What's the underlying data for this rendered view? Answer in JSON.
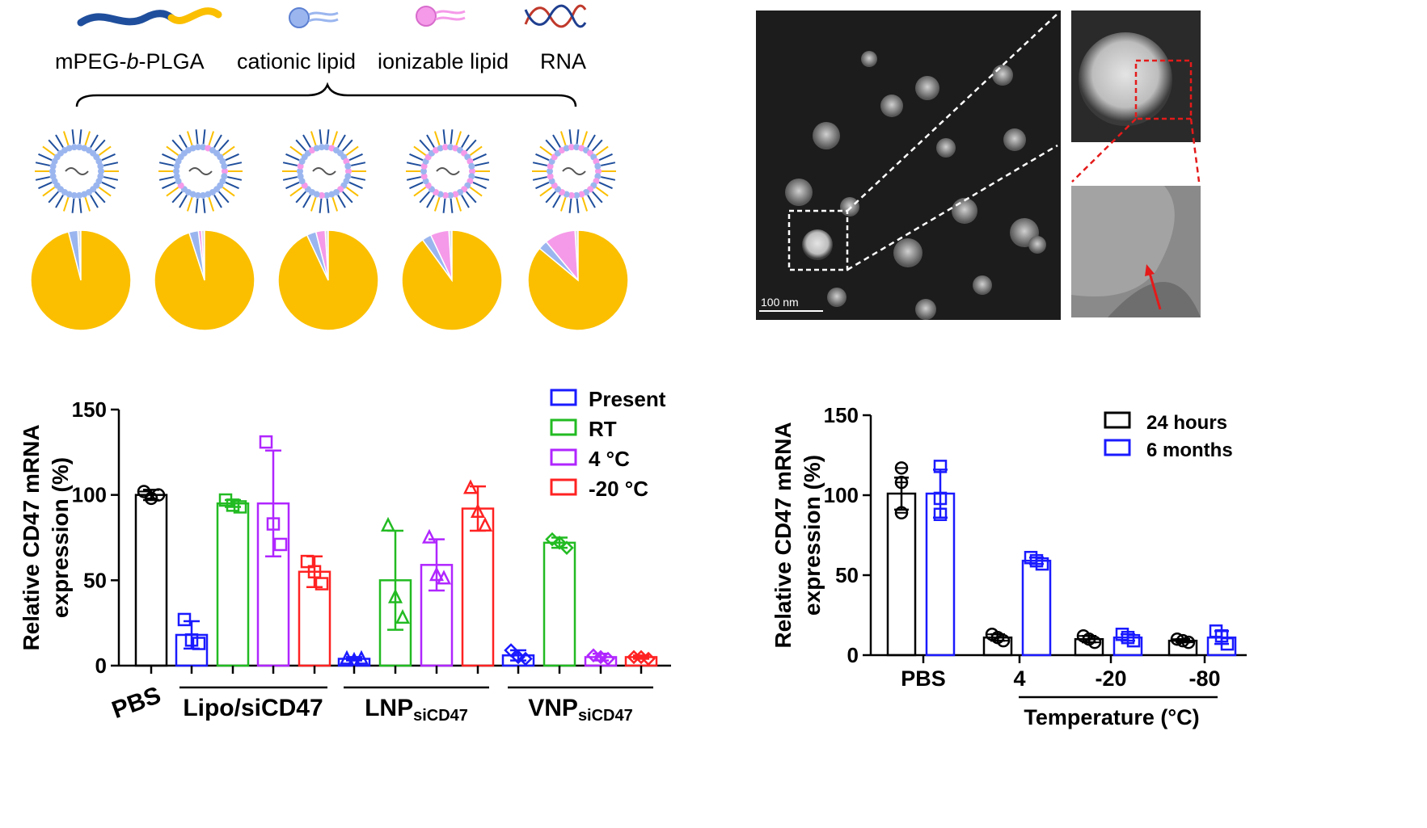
{
  "components": {
    "labels": [
      "mPEG-",
      "b",
      "-PLGA",
      "cationic lipid",
      "ionizable lipid",
      "RNA"
    ],
    "colors": {
      "polymer_peg": "#1f4e9c",
      "polymer_plga": "#fbbf00",
      "cationic": "#9bb6ef",
      "ionizable": "#f59ae9",
      "rna_red": "#c0392b",
      "rna_blue": "#1f3f8f"
    }
  },
  "pies": [
    {
      "slices": [
        {
          "name": "mPEG-b-PLGA",
          "value": 96,
          "color": "#fbbf00"
        },
        {
          "name": "cationic lipid",
          "value": 3,
          "color": "#9bb6ef"
        },
        {
          "name": "ionizable lipid",
          "value": 0,
          "color": "#f59ae9"
        },
        {
          "name": "RNA",
          "value": 1,
          "color": "#e0e0e0"
        }
      ]
    },
    {
      "slices": [
        {
          "name": "mPEG-b-PLGA",
          "value": 95,
          "color": "#fbbf00"
        },
        {
          "name": "cationic lipid",
          "value": 3,
          "color": "#9bb6ef"
        },
        {
          "name": "ionizable lipid",
          "value": 1,
          "color": "#f59ae9"
        },
        {
          "name": "RNA",
          "value": 1,
          "color": "#e0e0e0"
        }
      ]
    },
    {
      "slices": [
        {
          "name": "mPEG-b-PLGA",
          "value": 93,
          "color": "#fbbf00"
        },
        {
          "name": "cationic lipid",
          "value": 3,
          "color": "#9bb6ef"
        },
        {
          "name": "ionizable lipid",
          "value": 3,
          "color": "#f59ae9"
        },
        {
          "name": "RNA",
          "value": 1,
          "color": "#e0e0e0"
        }
      ]
    },
    {
      "slices": [
        {
          "name": "mPEG-b-PLGA",
          "value": 90,
          "color": "#fbbf00"
        },
        {
          "name": "cationic lipid",
          "value": 3,
          "color": "#9bb6ef"
        },
        {
          "name": "ionizable lipid",
          "value": 6,
          "color": "#f59ae9"
        },
        {
          "name": "RNA",
          "value": 1,
          "color": "#e0e0e0"
        }
      ]
    },
    {
      "slices": [
        {
          "name": "mPEG-b-PLGA",
          "value": 86,
          "color": "#fbbf00"
        },
        {
          "name": "cationic lipid",
          "value": 3,
          "color": "#9bb6ef"
        },
        {
          "name": "ionizable lipid",
          "value": 10,
          "color": "#f59ae9"
        },
        {
          "name": "RNA",
          "value": 1,
          "color": "#e0e0e0"
        }
      ]
    }
  ],
  "micrograph": {
    "scale_label": "100 nm"
  },
  "chart_data": [
    {
      "type": "bar",
      "ylabel_line1": "Relative CD47 mRNA",
      "ylabel_line2": "expression (%)",
      "ylim": [
        0,
        150
      ],
      "yticks": [
        0,
        50,
        100,
        150
      ],
      "groups": [
        {
          "label": "PBS",
          "sub": ""
        },
        {
          "label": "Lipo/siCD47",
          "sub": ""
        },
        {
          "label": "LNP",
          "sub": "siCD47"
        },
        {
          "label": "VNP",
          "sub": "siCD47"
        }
      ],
      "legend": [
        {
          "name": "Present",
          "color": "#1a1aff"
        },
        {
          "name": "RT",
          "color": "#22bb22"
        },
        {
          "name": "4 °C",
          "color": "#b026ff"
        },
        {
          "name": "-20 °C",
          "color": "#ff2222"
        }
      ],
      "bars": [
        {
          "group": 0,
          "series": "PBS",
          "color": "#000000",
          "marker": "circle",
          "mean": 100,
          "sd": 3,
          "points": [
            102,
            98,
            100
          ]
        },
        {
          "group": 1,
          "series": "Present",
          "color": "#1a1aff",
          "marker": "square",
          "mean": 18,
          "sd": 8,
          "points": [
            27,
            15,
            13
          ]
        },
        {
          "group": 1,
          "series": "RT",
          "color": "#22bb22",
          "marker": "square",
          "mean": 95,
          "sd": 2,
          "points": [
            97,
            94,
            93
          ]
        },
        {
          "group": 1,
          "series": "4 °C",
          "color": "#b026ff",
          "marker": "square",
          "mean": 95,
          "sd": 31,
          "points": [
            131,
            83,
            71
          ]
        },
        {
          "group": 1,
          "series": "-20 °C",
          "color": "#ff2222",
          "marker": "square",
          "mean": 55,
          "sd": 9,
          "points": [
            61,
            55,
            48
          ]
        },
        {
          "group": 2,
          "series": "Present",
          "color": "#1a1aff",
          "marker": "triangle",
          "mean": 4,
          "sd": 1,
          "points": [
            4,
            3,
            4
          ]
        },
        {
          "group": 2,
          "series": "RT",
          "color": "#22bb22",
          "marker": "triangle",
          "mean": 50,
          "sd": 29,
          "points": [
            82,
            40,
            28
          ]
        },
        {
          "group": 2,
          "series": "4 °C",
          "color": "#b026ff",
          "marker": "triangle",
          "mean": 59,
          "sd": 15,
          "points": [
            75,
            53,
            51
          ]
        },
        {
          "group": 2,
          "series": "-20 °C",
          "color": "#ff2222",
          "marker": "triangle",
          "mean": 92,
          "sd": 13,
          "points": [
            104,
            90,
            82
          ]
        },
        {
          "group": 3,
          "series": "Present",
          "color": "#1a1aff",
          "marker": "diamond",
          "mean": 6,
          "sd": 3,
          "points": [
            9,
            5,
            4
          ]
        },
        {
          "group": 3,
          "series": "RT",
          "color": "#22bb22",
          "marker": "diamond",
          "mean": 72,
          "sd": 3,
          "points": [
            74,
            72,
            69
          ]
        },
        {
          "group": 3,
          "series": "4 °C",
          "color": "#b026ff",
          "marker": "diamond",
          "mean": 5,
          "sd": 2,
          "points": [
            6,
            5,
            4
          ]
        },
        {
          "group": 3,
          "series": "-20 °C",
          "color": "#ff2222",
          "marker": "diamond",
          "mean": 5,
          "sd": 1,
          "points": [
            5,
            5,
            4
          ]
        }
      ]
    },
    {
      "type": "bar",
      "ylabel_line1": "Relative CD47 mRNA",
      "ylabel_line2": "expression (%)",
      "xlabel": "Temperature (°C)",
      "ylim": [
        0,
        150
      ],
      "yticks": [
        0,
        50,
        100,
        150
      ],
      "categories": [
        "PBS",
        "4",
        "-20",
        "-80"
      ],
      "legend": [
        {
          "name": "24 hours",
          "color": "#000000"
        },
        {
          "name": "6 months",
          "color": "#1a1aff"
        }
      ],
      "series": [
        {
          "name": "24 hours",
          "color": "#000000",
          "marker": "circle",
          "values": [
            101,
            11,
            10,
            9
          ],
          "sd": [
            10,
            2,
            2,
            1
          ],
          "points": [
            [
              117,
              108,
              89
            ],
            [
              13,
              11,
              9
            ],
            [
              12,
              10,
              8
            ],
            [
              10,
              9,
              8
            ]
          ]
        },
        {
          "name": "6 months",
          "color": "#1a1aff",
          "marker": "square",
          "values": [
            101,
            59,
            11,
            11
          ],
          "sd": [
            15,
            2,
            2,
            4
          ],
          "points": [
            [
              118,
              98,
              88
            ],
            [
              61,
              59,
              57
            ],
            [
              13,
              11,
              9
            ],
            [
              15,
              12,
              7
            ]
          ]
        }
      ]
    }
  ]
}
